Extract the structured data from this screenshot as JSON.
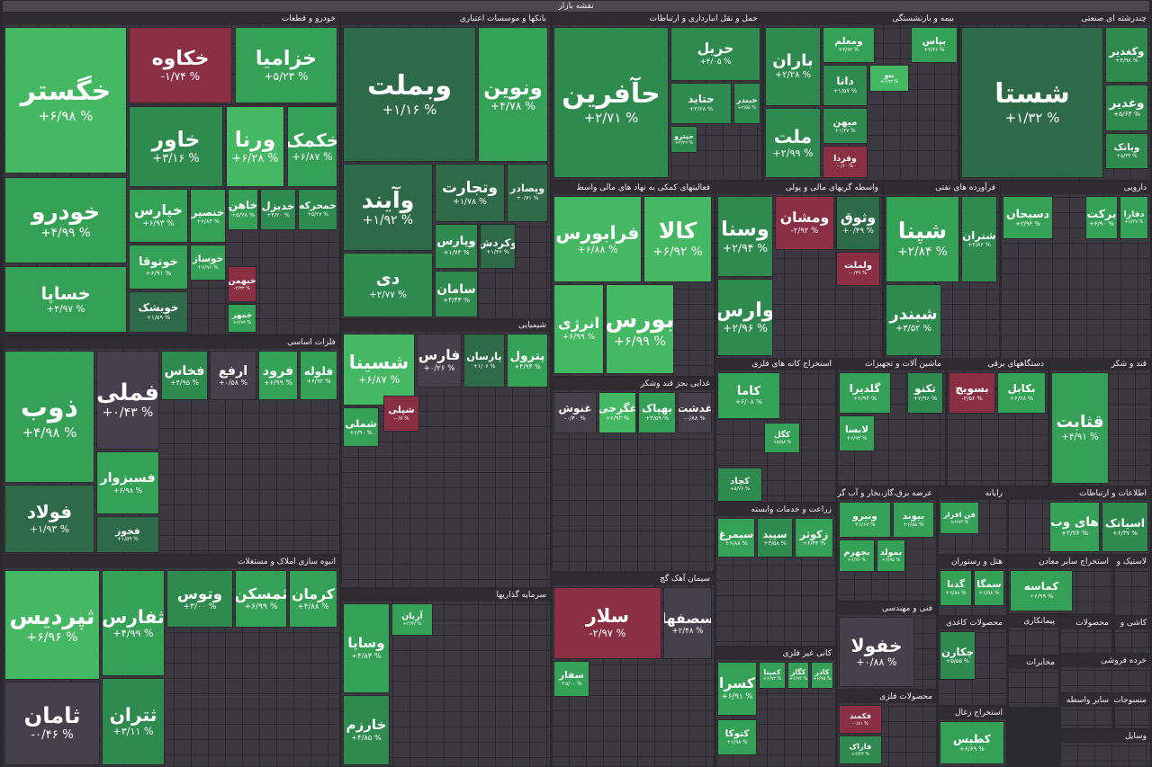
{
  "title": "نقشه بازار",
  "sectors": [
    {
      "title": "خودرو و قطعات",
      "tiles": [
        {
          "name": "خگستر",
          "change": "+۶/۹۸ %"
        },
        {
          "name": "خودرو",
          "change": "+۴/۹۹ %"
        },
        {
          "name": "خساپا",
          "change": "+۴/۹۷ %"
        },
        {
          "name": "خکاوه",
          "change": "-۱/۷۴ %"
        },
        {
          "name": "خزامیا",
          "change": "+۵/۲۳ %"
        },
        {
          "name": "خاور",
          "change": "+۳/۱۶ %"
        },
        {
          "name": "ورنا",
          "change": "+۶/۲۸ %"
        },
        {
          "name": "خکمک",
          "change": "+۶/۸۷ %"
        },
        {
          "name": "خپارس",
          "change": "+۶/۹۳ %"
        },
        {
          "name": "خنصیر",
          "change": "+۶/۸۳ %"
        },
        {
          "name": "خاهن",
          "change": "+۵/۷۸ %"
        },
        {
          "name": "خدیزل",
          "change": "+۴/۲۰ %"
        },
        {
          "name": "خمحرکه",
          "change": "+۵/۲۷ %"
        },
        {
          "name": "خوتوقا",
          "change": "+۶/۹۱ %"
        },
        {
          "name": "خوساز",
          "change": "+۶/۹۱ %"
        },
        {
          "name": "خبهمن",
          "change": "-۲/۳۳ %"
        },
        {
          "name": "خویشک",
          "change": "+۱/۵۹ %"
        },
        {
          "name": "خمهر",
          "change": "+۶/۹۳ %"
        }
      ]
    },
    {
      "title": "بانکها و موسسات اعتباری",
      "tiles": [
        {
          "name": "وبملت",
          "change": "+۱/۱۶ %"
        },
        {
          "name": "ونوین",
          "change": "+۴/۷۸ %"
        },
        {
          "name": "وآیند",
          "change": "+۱/۹۲ %"
        },
        {
          "name": "دی",
          "change": "+۲/۷۷ %"
        },
        {
          "name": "وتجارت",
          "change": "+۱/۷۸ %"
        },
        {
          "name": "وپصادر",
          "change": "+۰/۷۱ %"
        },
        {
          "name": "وپارس",
          "change": "+۱/۷۳ %"
        },
        {
          "name": "وکردش",
          "change": "+۱/۴۶ %"
        },
        {
          "name": "سامان",
          "change": "+۴/۴۳ %"
        }
      ]
    },
    {
      "title": "حمل و نقل انبارداری و ارتباطات",
      "tiles": [
        {
          "name": "حآفرین",
          "change": "+۲/۷۱ %"
        },
        {
          "name": "حریل",
          "change": "+۴/۰۵ %"
        },
        {
          "name": "حتاید",
          "change": "+۲/۶۸ %"
        },
        {
          "name": "حبندر",
          "change": "+۲/۵۵ %"
        },
        {
          "name": "حپترو",
          "change": "+۲/۲۹ %"
        }
      ]
    },
    {
      "title": "بیمه و بازنشستگی",
      "tiles": [
        {
          "name": "باران",
          "change": "+۲/۲۸ %"
        },
        {
          "name": "ملت",
          "change": "+۲/۹۹ %"
        },
        {
          "name": "ومعلم",
          "change": "+۳/۹۳ %"
        },
        {
          "name": "بپاس",
          "change": "+۲/۴۶ %"
        },
        {
          "name": "دانا",
          "change": "+۱/۵۷ %"
        },
        {
          "name": "بنو",
          "change": "+۶/۹۳ %"
        },
        {
          "name": "میهن",
          "change": "+۱/۳۷ %"
        },
        {
          "name": "وفردا",
          "change": "-۰/۶۰ %"
        }
      ]
    },
    {
      "title": "چندرشته ای صنعتی",
      "tiles": [
        {
          "name": "شستا",
          "change": "+۱/۳۲ %"
        },
        {
          "name": "وکغدیر",
          "change": "+۴/۹۸ %"
        },
        {
          "name": "وغدیر",
          "change": "+۵/۶۴ %"
        },
        {
          "name": "وبانک",
          "change": "+۵/۳۳ %"
        }
      ]
    },
    {
      "title": "فعالیتهای کمکی به نهاد های مالی واسط",
      "tiles": [
        {
          "name": "فرابورس",
          "change": "+۶/۸۸ %"
        },
        {
          "name": "کالا",
          "change": "+۶/۹۲ %"
        },
        {
          "name": "انرژی",
          "change": "+۶/۹۹ %"
        },
        {
          "name": "بورس",
          "change": "+۶/۹۹ %"
        }
      ]
    },
    {
      "title": "واسطه گریهای مالی و پولی",
      "tiles": [
        {
          "name": "وسنا",
          "change": "+۲/۹۴ %"
        },
        {
          "name": "ومشان",
          "change": "-۲/۹۲ %"
        },
        {
          "name": "وثوق",
          "change": "+۰/۴۹ %"
        },
        {
          "name": "وارس",
          "change": "+۲/۹۶ %"
        },
        {
          "name": "ولملت",
          "change": "-۰/۳۹ %"
        }
      ]
    },
    {
      "title": "فرآورده های نفتی",
      "tiles": [
        {
          "name": "شپنا",
          "change": "+۲/۸۴ %"
        },
        {
          "name": "شتران",
          "change": "+۲/۸۶ %"
        },
        {
          "name": "شبندر",
          "change": "+۳/۵۲ %"
        }
      ]
    },
    {
      "title": "دارویی",
      "tiles": [
        {
          "name": "دسبحان",
          "change": "+۳/۹۴ %"
        },
        {
          "name": "برکت",
          "change": "+۴/۹۰ %"
        },
        {
          "name": "دفارا",
          "change": "+۶/۳۷ %"
        }
      ]
    },
    {
      "title": "فلزات اساسی",
      "tiles": [
        {
          "name": "ذوب",
          "change": "+۴/۹۸ %"
        },
        {
          "name": "فملی",
          "change": "+۰/۴۳ %"
        },
        {
          "name": "فولاد",
          "change": "+۱/۹۳ %"
        },
        {
          "name": "فسبزوار",
          "change": "+۶/۹۸ %"
        },
        {
          "name": "فخوز",
          "change": "+۱/۵۹ %"
        },
        {
          "name": "فخاس",
          "change": "+۴/۹۵ %"
        },
        {
          "name": "ارفع",
          "change": "+۰/۵۸ %"
        },
        {
          "name": "فرود",
          "change": "+۶/۹۹ %"
        },
        {
          "name": "فلوله",
          "change": "+۶/۹۳ %"
        }
      ]
    },
    {
      "title": "انبوه سازی املاک و مستغلات",
      "tiles": [
        {
          "name": "ثپردیس",
          "change": "+۶/۹۶ %"
        },
        {
          "name": "ثامان",
          "change": "-۰/۴۶ %"
        },
        {
          "name": "ثفارس",
          "change": "+۴/۹۹ %"
        },
        {
          "name": "ثتران",
          "change": "+۳/۱۱ %"
        },
        {
          "name": "وتوس",
          "change": "+۳/۰۰ %"
        },
        {
          "name": "ثمسکن",
          "change": "+۶/۹۹ %"
        },
        {
          "name": "کرمان",
          "change": "+۴/۸۸ %"
        }
      ]
    },
    {
      "title": "شیمیایی",
      "tiles": [
        {
          "name": "شسینا",
          "change": "+۶/۸۷ %"
        },
        {
          "name": "فارس",
          "change": "+۰/۲۶ %"
        },
        {
          "name": "پارسان",
          "change": "+۱/۰۶ %"
        },
        {
          "name": "پترول",
          "change": "+۴/۹۴ %"
        },
        {
          "name": "شملی",
          "change": "+۶/۹۰ %"
        },
        {
          "name": "شپلی",
          "change": "-۰/۷ %"
        }
      ]
    },
    {
      "title": "غذایی بجز قند وشکر",
      "tiles": [
        {
          "name": "غنوش",
          "change": "-۰/۴۰ %"
        },
        {
          "name": "غگرجی",
          "change": "+۶/۹۳ %"
        },
        {
          "name": "بهپاک",
          "change": "+۳/۵۹ %"
        },
        {
          "name": "غدشت",
          "change": "-۰/۸۸ %"
        }
      ]
    },
    {
      "title": "سیمان آهک گچ",
      "tiles": [
        {
          "name": "سلار",
          "change": "-۲/۹۷ %"
        },
        {
          "name": "سصفها",
          "change": "+۲/۴۸ %"
        },
        {
          "name": "سفار",
          "change": "+۵/۰۰ %"
        }
      ]
    },
    {
      "title": "سرمایه گذاریها",
      "tiles": [
        {
          "name": "وساپا",
          "change": "+۴/۸۳ %"
        },
        {
          "name": "خارزم",
          "change": "+۴/۸۵ %"
        },
        {
          "name": "آریان",
          "change": "+۴/۹۷ %"
        }
      ]
    },
    {
      "title": "استخراج کانه های فلزی",
      "tiles": [
        {
          "name": "کاما",
          "change": "+۶/۰۸ %"
        },
        {
          "name": "کگل",
          "change": "+۵/۵۸ %"
        },
        {
          "name": "کچاد",
          "change": "+۵/۷۶ %"
        }
      ]
    },
    {
      "title": "ماشین آلات و تجهیزات",
      "tiles": [
        {
          "name": "گلدیرا",
          "change": "+۶/۹۳ %"
        },
        {
          "name": "تکنو",
          "change": "+۲/۹۶ %"
        },
        {
          "name": "لابسا",
          "change": "+۶/۹۳ %"
        }
      ]
    },
    {
      "title": "دستگاههای برقی",
      "tiles": [
        {
          "name": "بسویچ",
          "change": "-۲/۵۶ %"
        },
        {
          "name": "بکابل",
          "change": "+۶/۶۸ %"
        }
      ]
    },
    {
      "title": "قند و شکر",
      "tiles": [
        {
          "name": "قثابت",
          "change": "+۴/۹۱ %"
        }
      ]
    },
    {
      "title": "زراعت و خدمات وابسته",
      "tiles": [
        {
          "name": "سیمرغ",
          "change": "+۶/۸۸ %"
        },
        {
          "name": "سپید",
          "change": "+۳/۵۸ %"
        },
        {
          "name": "زکوثر",
          "change": "+۶/۴۴ %"
        }
      ]
    },
    {
      "title": "عرضه برق،گاز،بخار و آب گرم",
      "tiles": [
        {
          "name": "ونیرو",
          "change": "+۶/۶۷ %"
        },
        {
          "name": "بیوند",
          "change": "+۶/۵۵ %"
        },
        {
          "name": "بجهرم",
          "change": "+۶/۹۶ %"
        },
        {
          "name": "بمولد",
          "change": "+۶/۹۵ %"
        }
      ]
    },
    {
      "title": "رایانه",
      "tiles": [
        {
          "name": "فن افزار",
          "change": "+۶/۹۳ %"
        }
      ]
    },
    {
      "title": "اطلاعات و ارتباطات",
      "tiles": [
        {
          "name": "های وب",
          "change": "+۲/۷۶ %"
        },
        {
          "name": "اسیاتک",
          "change": "+۶/۳۷ %"
        }
      ]
    },
    {
      "title": "هتل و رستوران",
      "tiles": [
        {
          "name": "گدنا",
          "change": "+۶/۸۸ %"
        },
        {
          "name": "سمگا",
          "change": "+۶/۹۸ %"
        }
      ]
    },
    {
      "title": "استخراج سایر معادن",
      "tiles": [
        {
          "name": "کماسه",
          "change": "+۶/۹۹ %"
        }
      ]
    },
    {
      "title": "کانی غیر فلزی",
      "tiles": [
        {
          "name": "کسرا",
          "change": "+۶/۹۱ %"
        },
        {
          "name": "کمینا",
          "change": "+۶/۹۳ %"
        },
        {
          "name": "کگاز",
          "change": "+۶/۹۴ %"
        },
        {
          "name": "کاذر",
          "change": "+۶/۹۵ %"
        },
        {
          "name": "کتوکا",
          "change": "+۶/۹۸ %"
        }
      ]
    },
    {
      "title": "فنی و مهندسی",
      "tiles": [
        {
          "name": "خفولا",
          "change": "+۰/۸۸ %"
        }
      ]
    },
    {
      "title": "محصولات فلزی",
      "tiles": [
        {
          "name": "فکمند",
          "change": "-۰/۸۱ %"
        },
        {
          "name": "فاراک",
          "change": "+۶/۴۳ %"
        }
      ]
    },
    {
      "title": "استخراج زغال",
      "tiles": [
        {
          "name": "کطبس",
          "change": "+۶/۶۹ %"
        }
      ]
    },
    {
      "title": "محصولات کاغذی",
      "tiles": [
        {
          "name": "چکارن",
          "change": "+۵/۵۵ %"
        }
      ]
    },
    {
      "title": "پیمانکاری",
      "tiles": []
    },
    {
      "title": "لاستیک و",
      "tiles": []
    },
    {
      "title": "کاشی و",
      "tiles": []
    },
    {
      "title": "محصولات",
      "tiles": []
    },
    {
      "title": "خرده فروشی",
      "tiles": []
    },
    {
      "title": "مخابرات",
      "tiles": []
    },
    {
      "title": "سایر واسطه",
      "tiles": []
    },
    {
      "title": "منسوجات",
      "tiles": []
    },
    {
      "title": "وسایل",
      "tiles": []
    }
  ]
}
